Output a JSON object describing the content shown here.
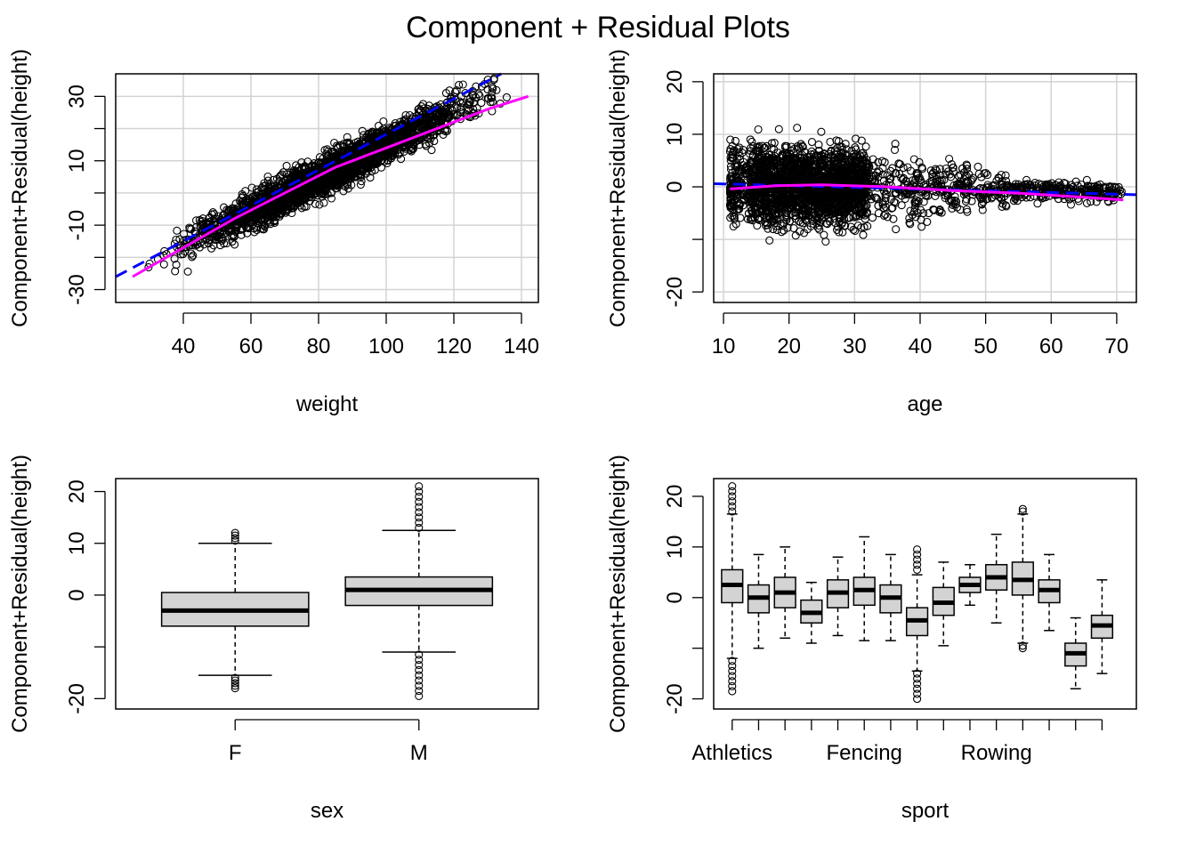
{
  "title": "Component + Residual Plots",
  "colors": {
    "fit": "#0000FF",
    "smooth": "#FF00FF",
    "box_fill": "#D3D3D3",
    "grid": "#D3D3D3"
  },
  "chart_data": [
    {
      "id": "weight",
      "type": "scatter",
      "xlabel": "weight",
      "ylabel": "Component+Residual(height)",
      "xlim": [
        20,
        145
      ],
      "ylim": [
        -34,
        37
      ],
      "xticks": [
        "40",
        "60",
        "80",
        "100",
        "120",
        "140"
      ],
      "xtick_values": [
        40,
        60,
        80,
        100,
        120,
        140
      ],
      "yticks": [
        "-30",
        "-10",
        "10",
        "30"
      ],
      "ytick_values": [
        -30,
        -10,
        10,
        30
      ],
      "yticks_minor": [
        -20,
        0,
        20
      ],
      "grid_x": [
        40,
        60,
        80,
        100,
        120,
        140
      ],
      "grid_y": [
        -30,
        -20,
        -10,
        0,
        10,
        20,
        30
      ],
      "linear_fit": {
        "x": [
          20,
          134
        ],
        "y": [
          -26,
          37
        ]
      },
      "smooth": {
        "x": [
          25,
          40,
          55,
          70,
          85,
          100,
          115,
          130,
          142
        ],
        "y": [
          -26,
          -17,
          -8,
          0,
          8,
          14,
          20,
          26,
          30
        ]
      },
      "cloud": {
        "x_range": [
          25,
          142
        ],
        "center_slope": 0.52,
        "center_intercept": -37,
        "spread": 5
      }
    },
    {
      "id": "age",
      "type": "scatter",
      "xlabel": "age",
      "ylabel": "Component+Residual(height)",
      "xlim": [
        8.5,
        73
      ],
      "ylim": [
        -22,
        21.5
      ],
      "xticks": [
        "10",
        "20",
        "30",
        "40",
        "50",
        "60",
        "70"
      ],
      "xtick_values": [
        10,
        20,
        30,
        40,
        50,
        60,
        70
      ],
      "yticks": [
        "-20",
        "0",
        "10",
        "20"
      ],
      "ytick_values": [
        -20,
        0,
        10,
        20
      ],
      "yticks_minor": [
        -10
      ],
      "grid_x": [
        10,
        20,
        30,
        40,
        50,
        60,
        70
      ],
      "grid_y": [
        -20,
        -10,
        0,
        10,
        20
      ],
      "linear_fit": {
        "x": [
          8.5,
          73
        ],
        "y": [
          0.6,
          -1.5
        ]
      },
      "smooth": {
        "x": [
          11,
          18,
          25,
          35,
          45,
          55,
          65,
          71
        ],
        "y": [
          -0.4,
          0.2,
          0.4,
          0,
          -0.7,
          -1.2,
          -2.0,
          -2.5
        ]
      },
      "cloud": {
        "x_range": [
          11,
          71
        ],
        "center_slope": 0,
        "center_intercept": 0,
        "spread": 6
      }
    },
    {
      "id": "sex",
      "type": "box",
      "xlabel": "sex",
      "ylabel": "Component+Residual(height)",
      "categories": [
        "F",
        "M"
      ],
      "xlim": [
        0.35,
        2.65
      ],
      "ylim": [
        -22,
        22.5
      ],
      "yticks": [
        "-20",
        "0",
        "10",
        "20"
      ],
      "ytick_values": [
        -20,
        0,
        10,
        20
      ],
      "yticks_minor": [
        -10
      ],
      "box_width": 0.8,
      "boxes": [
        {
          "label": "F",
          "q1": -6,
          "median": -3,
          "q3": 0.5,
          "low": -15.5,
          "high": 10,
          "outliers_low": [
            -16,
            -16.5,
            -17,
            -17.5,
            -18
          ],
          "outliers_high": [
            10.5,
            11,
            11.5,
            12
          ]
        },
        {
          "label": "M",
          "q1": -2,
          "median": 1,
          "q3": 3.5,
          "low": -11,
          "high": 12.5,
          "outliers_low": [
            -11.5,
            -12.5,
            -13.5,
            -14.5,
            -15.5,
            -16.5,
            -17.5,
            -18.5,
            -19.5
          ],
          "outliers_high": [
            13,
            14,
            15,
            16,
            17,
            18,
            19,
            20,
            21
          ]
        }
      ]
    },
    {
      "id": "sport",
      "type": "box",
      "xlabel": "sport",
      "ylabel": "Component+Residual(height)",
      "categories": [
        "Athletics",
        "",
        "",
        "",
        "",
        "Fencing",
        "",
        "",
        "",
        "",
        "Rowing",
        "",
        "",
        "",
        ""
      ],
      "xtick_labels_shown": [
        "Athletics",
        "Fencing",
        "Rowing"
      ],
      "xtick_label_positions": [
        1,
        6,
        11
      ],
      "xlim": [
        0.3,
        16.3
      ],
      "ylim": [
        -22,
        23.5
      ],
      "yticks": [
        "-20",
        "0",
        "10",
        "20"
      ],
      "ytick_values": [
        -20,
        0,
        10,
        20
      ],
      "yticks_minor": [
        -10
      ],
      "box_width": 0.8,
      "boxes": [
        {
          "q1": -1,
          "median": 2.5,
          "q3": 5.5,
          "low": -12,
          "high": 16.5,
          "outliers_low": [
            -12.5,
            -13.5,
            -14.5,
            -15.5,
            -16.5,
            -17.5,
            -18.5
          ],
          "outliers_high": [
            17,
            18,
            19,
            20,
            21,
            22
          ]
        },
        {
          "q1": -3,
          "median": 0,
          "q3": 2.5,
          "low": -10,
          "high": 8.5,
          "outliers_low": [],
          "outliers_high": []
        },
        {
          "q1": -2,
          "median": 1,
          "q3": 4,
          "low": -8,
          "high": 10,
          "outliers_low": [],
          "outliers_high": []
        },
        {
          "q1": -5,
          "median": -3,
          "q3": -0.5,
          "low": -9,
          "high": 3,
          "outliers_low": [],
          "outliers_high": []
        },
        {
          "q1": -2,
          "median": 1,
          "q3": 3.5,
          "low": -7.5,
          "high": 8,
          "outliers_low": [],
          "outliers_high": []
        },
        {
          "q1": -1.5,
          "median": 1.5,
          "q3": 4,
          "low": -8.5,
          "high": 12,
          "outliers_low": [],
          "outliers_high": []
        },
        {
          "q1": -3,
          "median": 0,
          "q3": 2.5,
          "low": -8.5,
          "high": 8.5,
          "outliers_low": [],
          "outliers_high": []
        },
        {
          "q1": -7.5,
          "median": -4.5,
          "q3": -2,
          "low": -14.5,
          "high": 4.5,
          "outliers_low": [
            -15,
            -16,
            -17,
            -18,
            -19,
            -20
          ],
          "outliers_high": [
            5.5,
            6.5,
            7.5,
            8.5,
            9.5
          ]
        },
        {
          "q1": -3.5,
          "median": -1,
          "q3": 2,
          "low": -9.5,
          "high": 7,
          "outliers_low": [],
          "outliers_high": []
        },
        {
          "q1": 1,
          "median": 2.5,
          "q3": 4,
          "low": -1.5,
          "high": 6.5,
          "outliers_low": [],
          "outliers_high": []
        },
        {
          "q1": 1.5,
          "median": 4,
          "q3": 6.5,
          "low": -5,
          "high": 12.5,
          "outliers_low": [],
          "outliers_high": []
        },
        {
          "q1": 0.5,
          "median": 3.5,
          "q3": 7,
          "low": -9,
          "high": 16.5,
          "outliers_low": [
            -9.5,
            -10
          ],
          "outliers_high": [
            17,
            17.5
          ]
        },
        {
          "q1": -1,
          "median": 1.5,
          "q3": 3.5,
          "low": -6.5,
          "high": 8.5,
          "outliers_low": [],
          "outliers_high": []
        },
        {
          "q1": -13.5,
          "median": -11,
          "q3": -9,
          "low": -18,
          "high": -4,
          "outliers_low": [],
          "outliers_high": []
        },
        {
          "q1": -8,
          "median": -5.5,
          "q3": -3.5,
          "low": -15,
          "high": 3.5,
          "outliers_low": [],
          "outliers_high": []
        }
      ]
    }
  ]
}
